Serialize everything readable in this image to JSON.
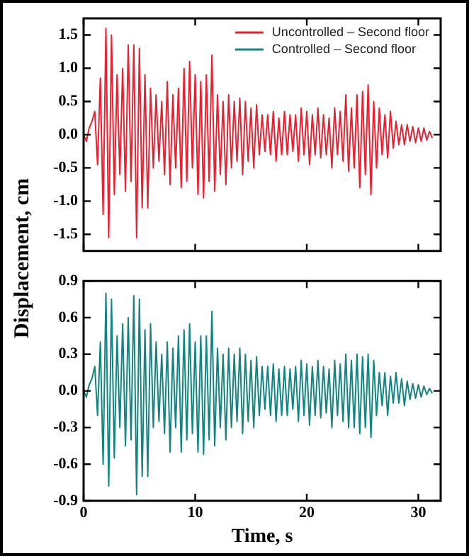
{
  "chart_data": [
    {
      "type": "line",
      "ylabel": "Displacement, cm",
      "legend": "top right",
      "tick_labels": "y",
      "grid": false,
      "marker": "none",
      "line_style": "solid",
      "xlim": [
        0,
        32
      ],
      "xticks": [
        0,
        10,
        20,
        30
      ],
      "ylim": [
        -1.75,
        1.75
      ],
      "yticks": [
        -1.5,
        {
          "value": -1,
          "label": "-1.0"
        },
        -0.5,
        {
          "value": 0,
          "label": "0.0"
        },
        0.5,
        {
          "value": 1,
          "label": "1.0"
        },
        1.5
      ],
      "x": [
        0,
        0.25,
        0.5,
        0.75,
        1,
        1.25,
        1.5,
        1.75,
        2,
        2.25,
        2.5,
        2.75,
        3,
        3.25,
        3.5,
        3.75,
        4,
        4.25,
        4.5,
        4.75,
        5,
        5.25,
        5.5,
        5.75,
        6,
        6.25,
        6.5,
        6.75,
        7,
        7.25,
        7.5,
        7.75,
        8,
        8.25,
        8.5,
        8.75,
        9,
        9.25,
        9.5,
        9.75,
        10,
        10.25,
        10.5,
        10.75,
        11,
        11.25,
        11.5,
        11.75,
        12,
        12.25,
        12.5,
        12.75,
        13,
        13.25,
        13.5,
        13.75,
        14,
        14.25,
        14.5,
        14.75,
        15,
        15.25,
        15.5,
        15.75,
        16,
        16.25,
        16.5,
        16.75,
        17,
        17.25,
        17.5,
        17.75,
        18,
        18.25,
        18.5,
        18.75,
        19,
        19.25,
        19.5,
        19.75,
        20,
        20.25,
        20.5,
        20.75,
        21,
        21.25,
        21.5,
        21.75,
        22,
        22.25,
        22.5,
        22.75,
        23,
        23.25,
        23.5,
        23.75,
        24,
        24.25,
        24.5,
        24.75,
        25,
        25.25,
        25.5,
        25.75,
        26,
        26.25,
        26.5,
        26.75,
        27,
        27.25,
        27.5,
        27.75,
        28,
        28.25,
        28.5,
        28.75,
        29,
        29.25,
        29.5,
        29.75,
        30,
        30.25,
        30.5,
        30.75,
        31,
        31.25
      ],
      "series": [
        {
          "name": "Uncontrolled – Second floor",
          "color": "#e8202f",
          "values": [
            0,
            -0.1,
            0.1,
            0.2,
            0.35,
            -0.45,
            0.85,
            -1.2,
            1.6,
            -1.55,
            1.5,
            -0.9,
            0.9,
            -0.6,
            1.0,
            -0.85,
            1.35,
            -0.7,
            1.35,
            -1.55,
            1.3,
            -1.1,
            0.9,
            -1.1,
            0.7,
            -0.5,
            0.6,
            -0.4,
            0.5,
            -0.6,
            0.8,
            -0.75,
            0.6,
            -0.5,
            0.7,
            -0.8,
            1.0,
            -0.7,
            1.1,
            -0.5,
            0.9,
            -0.9,
            0.8,
            -0.95,
            0.9,
            -0.7,
            1.2,
            -0.85,
            0.6,
            -0.6,
            0.5,
            -0.75,
            0.6,
            -0.5,
            0.5,
            -0.4,
            0.55,
            -0.6,
            0.5,
            -0.4,
            0.4,
            -0.5,
            0.45,
            -0.3,
            0.3,
            -0.25,
            0.3,
            -0.3,
            0.35,
            -0.4,
            0.25,
            -0.3,
            0.35,
            -0.3,
            0.3,
            -0.25,
            0.3,
            -0.4,
            0.4,
            -0.3,
            0.35,
            -0.45,
            0.3,
            -0.3,
            0.4,
            -0.35,
            0.3,
            -0.3,
            0.25,
            -0.5,
            0.4,
            -0.3,
            0.35,
            -0.4,
            0.6,
            -0.55,
            0.4,
            -0.5,
            0.6,
            -0.8,
            0.65,
            -0.6,
            0.75,
            -0.9,
            0.5,
            -0.5,
            0.4,
            -0.3,
            0.3,
            -0.35,
            0.35,
            -0.2,
            0.2,
            -0.15,
            0.15,
            -0.15,
            0.15,
            -0.1,
            0.12,
            -0.12,
            0.1,
            -0.1,
            0.1,
            -0.08,
            0.05,
            -0.05
          ]
        }
      ]
    },
    {
      "type": "line",
      "xlabel": "Time, s",
      "grid": false,
      "marker": "none",
      "line_style": "solid",
      "xlim": [
        0,
        32
      ],
      "xticks": [
        0,
        10,
        20,
        30
      ],
      "ylim": [
        -0.9,
        0.9
      ],
      "yticks": [
        -0.9,
        -0.6,
        -0.3,
        {
          "value": 0,
          "label": "0.0"
        },
        0.3,
        0.6,
        0.9
      ],
      "x": [
        0,
        0.25,
        0.5,
        0.75,
        1,
        1.25,
        1.5,
        1.75,
        2,
        2.25,
        2.5,
        2.75,
        3,
        3.25,
        3.5,
        3.75,
        4,
        4.25,
        4.5,
        4.75,
        5,
        5.25,
        5.5,
        5.75,
        6,
        6.25,
        6.5,
        6.75,
        7,
        7.25,
        7.5,
        7.75,
        8,
        8.25,
        8.5,
        8.75,
        9,
        9.25,
        9.5,
        9.75,
        10,
        10.25,
        10.5,
        10.75,
        11,
        11.25,
        11.5,
        11.75,
        12,
        12.25,
        12.5,
        12.75,
        13,
        13.25,
        13.5,
        13.75,
        14,
        14.25,
        14.5,
        14.75,
        15,
        15.25,
        15.5,
        15.75,
        16,
        16.25,
        16.5,
        16.75,
        17,
        17.25,
        17.5,
        17.75,
        18,
        18.25,
        18.5,
        18.75,
        19,
        19.25,
        19.5,
        19.75,
        20,
        20.25,
        20.5,
        20.75,
        21,
        21.25,
        21.5,
        21.75,
        22,
        22.25,
        22.5,
        22.75,
        23,
        23.25,
        23.5,
        23.75,
        24,
        24.25,
        24.5,
        24.75,
        25,
        25.25,
        25.5,
        25.75,
        26,
        26.25,
        26.5,
        26.75,
        27,
        27.25,
        27.5,
        27.75,
        28,
        28.25,
        28.5,
        28.75,
        29,
        29.25,
        29.5,
        29.75,
        30,
        30.25,
        30.5,
        30.75,
        31,
        31.25
      ],
      "series": [
        {
          "name": "Controlled – Second floor",
          "color": "#12857f",
          "values": [
            0,
            -0.05,
            0.05,
            0.1,
            0.2,
            -0.2,
            0.4,
            -0.6,
            0.8,
            -0.78,
            0.75,
            -0.55,
            0.45,
            -0.3,
            0.55,
            -0.45,
            0.6,
            -0.4,
            0.78,
            -0.85,
            0.75,
            -0.7,
            0.5,
            -0.7,
            0.55,
            -0.3,
            0.4,
            -0.25,
            0.3,
            -0.35,
            0.4,
            -0.5,
            0.35,
            -0.3,
            0.45,
            -0.5,
            0.5,
            -0.4,
            0.55,
            -0.35,
            0.4,
            -0.5,
            0.45,
            -0.52,
            0.45,
            -0.4,
            0.65,
            -0.45,
            0.35,
            -0.3,
            0.3,
            -0.4,
            0.35,
            -0.3,
            0.3,
            -0.25,
            0.35,
            -0.35,
            0.3,
            -0.25,
            0.25,
            -0.3,
            0.28,
            -0.2,
            0.2,
            -0.15,
            0.2,
            -0.2,
            0.22,
            -0.25,
            0.18,
            -0.2,
            0.2,
            -0.2,
            0.18,
            -0.15,
            0.2,
            -0.25,
            0.25,
            -0.2,
            0.22,
            -0.28,
            0.2,
            -0.2,
            0.25,
            -0.22,
            0.2,
            -0.18,
            0.18,
            -0.3,
            0.25,
            -0.2,
            0.22,
            -0.25,
            0.3,
            -0.3,
            0.25,
            -0.3,
            0.3,
            -0.35,
            0.28,
            -0.3,
            0.3,
            -0.38,
            0.25,
            -0.2,
            0.15,
            -0.12,
            0.15,
            -0.2,
            0.12,
            -0.1,
            0.15,
            -0.1,
            0.1,
            -0.12,
            0.08,
            -0.07,
            0.06,
            -0.06,
            0.05,
            -0.05,
            0.04,
            -0.03,
            0.02,
            -0.02
          ]
        }
      ]
    }
  ]
}
